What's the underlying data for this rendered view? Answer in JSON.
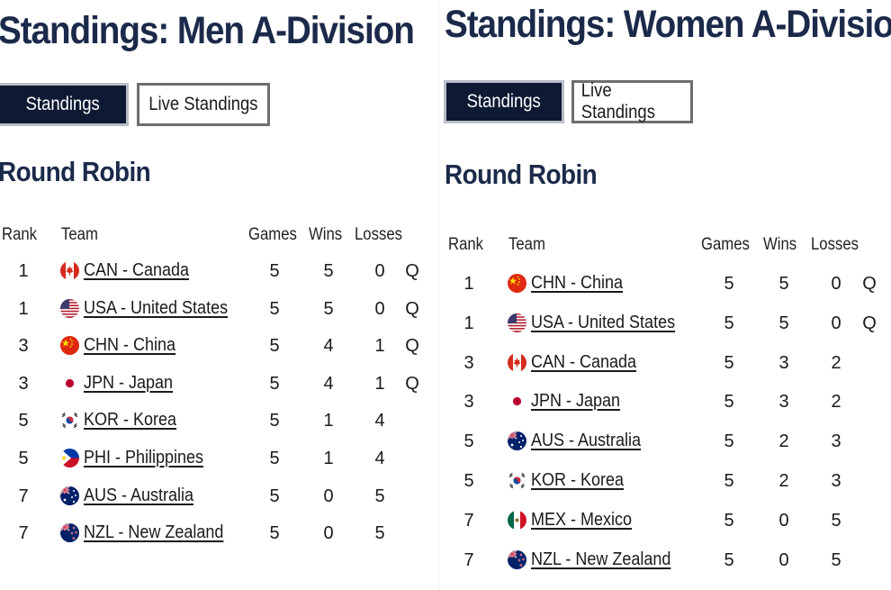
{
  "men": {
    "title": "Standings: Men A-Division",
    "tabs": [
      {
        "label": "Standings",
        "active": true
      },
      {
        "label": "Live Standings",
        "active": false
      }
    ],
    "section": "Round Robin",
    "headers": {
      "rank": "Rank",
      "team": "Team",
      "games": "Games",
      "wins": "Wins",
      "losses": "Losses"
    },
    "rows": [
      {
        "rank": "1",
        "team": "CAN - Canada",
        "flag": "canada-flag-icon",
        "games": "5",
        "wins": "5",
        "losses": "0",
        "q": "Q"
      },
      {
        "rank": "1",
        "team": "USA - United States",
        "flag": "usa-flag-icon",
        "games": "5",
        "wins": "5",
        "losses": "0",
        "q": "Q"
      },
      {
        "rank": "3",
        "team": "CHN - China",
        "flag": "china-flag-icon",
        "games": "5",
        "wins": "4",
        "losses": "1",
        "q": "Q"
      },
      {
        "rank": "3",
        "team": "JPN - Japan",
        "flag": "japan-flag-icon",
        "games": "5",
        "wins": "4",
        "losses": "1",
        "q": "Q"
      },
      {
        "rank": "5",
        "team": "KOR - Korea",
        "flag": "korea-flag-icon",
        "games": "5",
        "wins": "1",
        "losses": "4",
        "q": ""
      },
      {
        "rank": "5",
        "team": "PHI - Philippines",
        "flag": "philippines-flag-icon",
        "games": "5",
        "wins": "1",
        "losses": "4",
        "q": ""
      },
      {
        "rank": "7",
        "team": "AUS - Australia",
        "flag": "australia-flag-icon",
        "games": "5",
        "wins": "0",
        "losses": "5",
        "q": ""
      },
      {
        "rank": "7",
        "team": "NZL - New Zealand",
        "flag": "new-zealand-flag-icon",
        "games": "5",
        "wins": "0",
        "losses": "5",
        "q": ""
      }
    ]
  },
  "women": {
    "title": "Standings: Women A-Division",
    "tabs": [
      {
        "label": "Standings",
        "active": true
      },
      {
        "label": "Live Standings",
        "active": false
      }
    ],
    "section": "Round Robin",
    "headers": {
      "rank": "Rank",
      "team": "Team",
      "games": "Games",
      "wins": "Wins",
      "losses": "Losses"
    },
    "rows": [
      {
        "rank": "1",
        "team": "CHN - China",
        "flag": "china-flag-icon",
        "games": "5",
        "wins": "5",
        "losses": "0",
        "q": "Q"
      },
      {
        "rank": "1",
        "team": "USA - United States",
        "flag": "usa-flag-icon",
        "games": "5",
        "wins": "5",
        "losses": "0",
        "q": "Q"
      },
      {
        "rank": "3",
        "team": "CAN - Canada",
        "flag": "canada-flag-icon",
        "games": "5",
        "wins": "3",
        "losses": "2",
        "q": ""
      },
      {
        "rank": "3",
        "team": "JPN - Japan",
        "flag": "japan-flag-icon",
        "games": "5",
        "wins": "3",
        "losses": "2",
        "q": ""
      },
      {
        "rank": "5",
        "team": "AUS - Australia",
        "flag": "australia-flag-icon",
        "games": "5",
        "wins": "2",
        "losses": "3",
        "q": ""
      },
      {
        "rank": "5",
        "team": "KOR - Korea",
        "flag": "korea-flag-icon",
        "games": "5",
        "wins": "2",
        "losses": "3",
        "q": ""
      },
      {
        "rank": "7",
        "team": "MEX - Mexico",
        "flag": "mexico-flag-icon",
        "games": "5",
        "wins": "0",
        "losses": "5",
        "q": ""
      },
      {
        "rank": "7",
        "team": "NZL - New Zealand",
        "flag": "new-zealand-flag-icon",
        "games": "5",
        "wins": "0",
        "losses": "5",
        "q": ""
      }
    ]
  }
}
